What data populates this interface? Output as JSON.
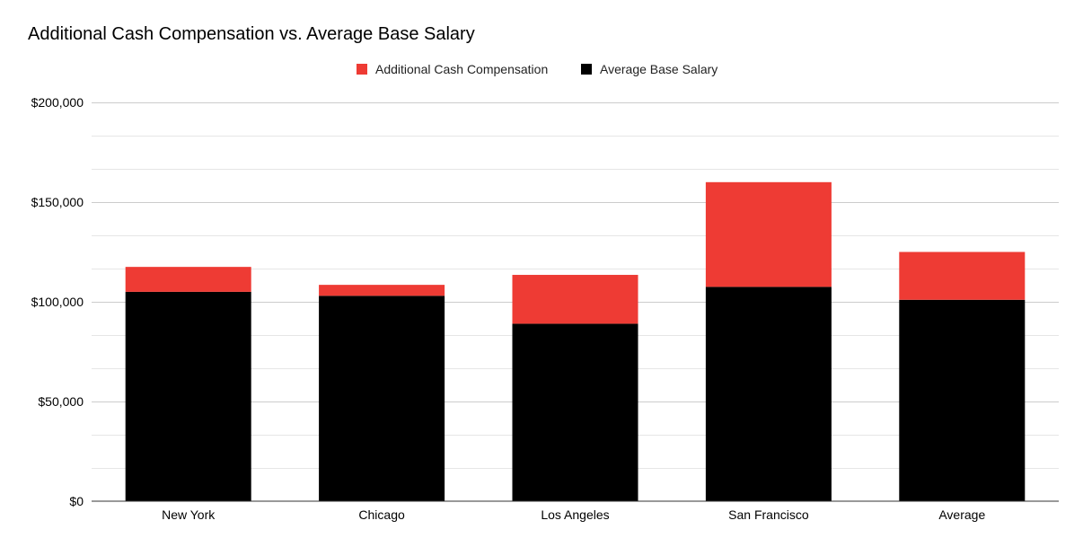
{
  "chart_data": {
    "type": "bar",
    "stacked": true,
    "title": "Additional Cash Compensation vs. Average Base Salary",
    "categories": [
      "New York",
      "Chicago",
      "Los Angeles",
      "San Francisco",
      "Average"
    ],
    "series": [
      {
        "name": "Average Base Salary",
        "color": "#000000",
        "values": [
          105000,
          103000,
          89000,
          107500,
          101000
        ]
      },
      {
        "name": "Additional Cash Compensation",
        "color": "#ee3b34",
        "values": [
          12500,
          5500,
          24500,
          52500,
          24000
        ]
      }
    ],
    "legend": [
      {
        "name": "Additional Cash Compensation",
        "color": "#ee3b34"
      },
      {
        "name": "Average Base Salary",
        "color": "#000000"
      }
    ],
    "legend_position": "top",
    "yticks": [
      {
        "value": 0,
        "label": "$0"
      },
      {
        "value": 50000,
        "label": "$50,000"
      },
      {
        "value": 100000,
        "label": "$100,000"
      },
      {
        "value": 150000,
        "label": "$150,000"
      },
      {
        "value": 200000,
        "label": "$200,000"
      }
    ],
    "ylim": [
      0,
      200000
    ],
    "minor_gridline_step": 16666.67,
    "xlabel": "",
    "ylabel": ""
  }
}
